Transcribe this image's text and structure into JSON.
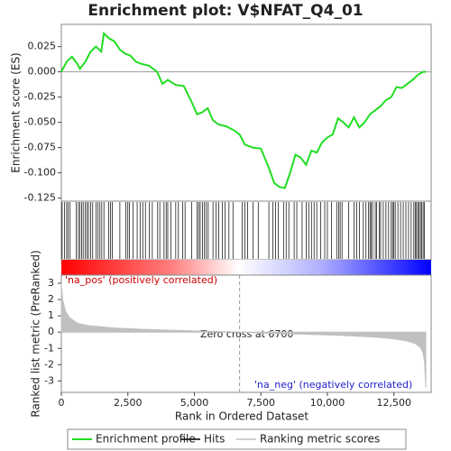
{
  "chart_data": [
    {
      "type": "line",
      "title": "Enrichment plot: V$NFAT_Q4_01",
      "y_label": "Enrichment score (ES)",
      "series": [
        {
          "name": "Enrichment profile",
          "color": "#22dd22",
          "x": [
            0,
            200,
            400,
            600,
            700,
            900,
            1100,
            1300,
            1500,
            1600,
            1800,
            2000,
            2200,
            2400,
            2600,
            2800,
            3000,
            3300,
            3600,
            3800,
            4000,
            4300,
            4600,
            4900,
            5100,
            5300,
            5500,
            5700,
            5900,
            6200,
            6500,
            6700,
            6900,
            7200,
            7500,
            7800,
            8000,
            8200,
            8400,
            8600,
            8800,
            9000,
            9200,
            9400,
            9600,
            9800,
            10000,
            10200,
            10400,
            10600,
            10800,
            11000,
            11200,
            11400,
            11600,
            11800,
            12000,
            12200,
            12400,
            12600,
            12800,
            13000,
            13200,
            13400,
            13600,
            13700
          ],
          "values": [
            0,
            0.01,
            0.015,
            0.008,
            0.003,
            0.01,
            0.02,
            0.025,
            0.02,
            0.038,
            0.033,
            0.03,
            0.022,
            0.018,
            0.016,
            0.01,
            0.008,
            0.006,
            0,
            -0.012,
            -0.008,
            -0.013,
            -0.014,
            -0.03,
            -0.042,
            -0.04,
            -0.036,
            -0.048,
            -0.052,
            -0.054,
            -0.058,
            -0.062,
            -0.072,
            -0.075,
            -0.076,
            -0.095,
            -0.11,
            -0.114,
            -0.115,
            -0.1,
            -0.082,
            -0.085,
            -0.092,
            -0.078,
            -0.08,
            -0.07,
            -0.065,
            -0.062,
            -0.046,
            -0.05,
            -0.055,
            -0.045,
            -0.055,
            -0.05,
            -0.042,
            -0.038,
            -0.034,
            -0.028,
            -0.025,
            -0.015,
            -0.016,
            -0.012,
            -0.008,
            -0.003,
            0,
            0
          ]
        }
      ],
      "xlim": [
        0,
        13900
      ],
      "ylim": [
        -0.128,
        0.047
      ],
      "yticks": [
        {
          "value": 0.025,
          "label": "0.025"
        },
        {
          "value": 0,
          "label": "0.000"
        },
        {
          "value": -0.025,
          "label": "-0.025"
        },
        {
          "value": -0.05,
          "label": "-0.050"
        },
        {
          "value": -0.075,
          "label": "-0.075"
        },
        {
          "value": -0.1,
          "label": "-0.100"
        },
        {
          "value": -0.125,
          "label": "-0.125"
        }
      ]
    },
    {
      "type": "hits",
      "name": "Hits",
      "color": "#000000",
      "xlim": [
        0,
        13900
      ],
      "hits": [
        30,
        120,
        200,
        260,
        330,
        560,
        640,
        700,
        760,
        820,
        900,
        960,
        1020,
        1100,
        1180,
        1300,
        1380,
        1450,
        1520,
        1600,
        1780,
        1850,
        1920,
        2200,
        2420,
        2500,
        2560,
        2700,
        2850,
        2960,
        3060,
        3160,
        3300,
        3420,
        3620,
        3700,
        3860,
        3940,
        4000,
        4120,
        4300,
        4400,
        4560,
        4650,
        4900,
        5100,
        5160,
        5220,
        5300,
        5380,
        5450,
        5520,
        5700,
        5820,
        5920,
        6050,
        6150,
        6300,
        6450,
        6800,
        6900,
        7000,
        7200,
        7400,
        7800,
        7950,
        8050,
        8150,
        8350,
        8450,
        8550,
        8750,
        8850,
        9050,
        9200,
        9300,
        9400,
        9500,
        9600,
        9750,
        9900,
        10000,
        10150,
        10350,
        10420,
        10480,
        10550,
        10800,
        11000,
        11100,
        11200,
        11350,
        11450,
        11550,
        11600,
        11650,
        11700,
        11800,
        11850,
        11950,
        12000,
        12100,
        12200,
        12300,
        12400,
        12450,
        12500,
        12550,
        12650,
        12750,
        12850,
        12950,
        13050,
        13150,
        13250,
        13300,
        13350,
        13400,
        13450,
        13500,
        13550,
        13600,
        13650
      ]
    },
    {
      "type": "area",
      "y_label": "Ranked list metric (PreRanked)",
      "x_label": "Rank in Ordered Dataset",
      "series": [
        {
          "name": "Ranking metric scores",
          "color": "#c0c0c0",
          "x": [
            0,
            50,
            150,
            300,
            600,
            1000,
            2000,
            3000,
            4000,
            5000,
            6000,
            6700,
            7500,
            8500,
            9500,
            10500,
            11500,
            12000,
            12500,
            13000,
            13300,
            13500,
            13600,
            13650,
            13700
          ],
          "values": [
            3,
            2,
            1.3,
            0.9,
            0.55,
            0.4,
            0.25,
            0.18,
            0.12,
            0.07,
            0.03,
            0,
            -0.05,
            -0.1,
            -0.15,
            -0.2,
            -0.28,
            -0.33,
            -0.42,
            -0.55,
            -0.7,
            -0.95,
            -1.3,
            -1.8,
            -3.4
          ]
        }
      ],
      "xlim": [
        0,
        13900
      ],
      "ylim": [
        -3.7,
        3.5
      ],
      "xticks": [
        0,
        {
          "value": 2500,
          "label": "2,500"
        },
        {
          "value": 5000,
          "label": "5,000"
        },
        {
          "value": 7500,
          "label": "7,500"
        },
        {
          "value": 10000,
          "label": "10,000"
        },
        {
          "value": 12500,
          "label": "12,500"
        }
      ],
      "yticks": [
        3,
        2,
        1,
        0,
        -1,
        -2,
        -3
      ],
      "zero_cross": 6700,
      "annotations": [
        "Zero cross at 6700",
        "'na_pos' (positively correlated)",
        "'na_neg' (negatively correlated)"
      ]
    }
  ]
}
